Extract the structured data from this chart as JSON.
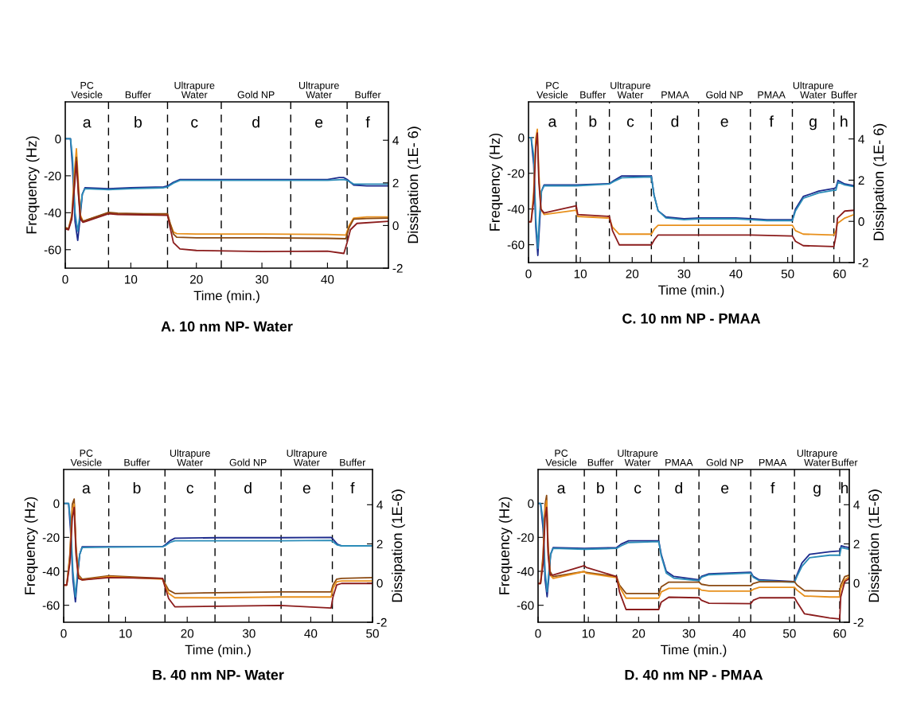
{
  "chart_data": [
    {
      "type": "line",
      "title": "A. 10 nm NP- Water",
      "xlabel": "Time (min.)",
      "ylabel": "Frequency (Hz)",
      "y2label": "Dissipation (1E- 6)",
      "xlim": [
        0,
        49.3
      ],
      "xticks": [
        0,
        10,
        20,
        30,
        40
      ],
      "ylim": [
        -70,
        20
      ],
      "yticks": [
        0,
        -20,
        -40,
        -60
      ],
      "y2lim": [
        -2,
        5.8
      ],
      "y2ticks": [
        -2,
        0,
        2,
        4
      ],
      "series": [
        {
          "color": "#1c2a8c",
          "x": [
            0,
            0.8,
            1.1,
            1.5,
            1.9,
            2.2,
            2.6,
            3,
            6.6,
            10,
            15,
            15.6,
            16.5,
            17.5,
            20,
            25,
            30,
            35,
            40,
            41.8,
            42.5,
            43,
            44,
            46,
            49.3
          ],
          "values": [
            0,
            0,
            -15,
            -45,
            -55,
            -45,
            -30,
            -26.5,
            -27,
            -26.5,
            -26,
            -25.5,
            -23.5,
            -22,
            -22,
            -22,
            -22,
            -22,
            -22,
            -21,
            -21,
            -22,
            -25,
            -25.5,
            -25.5
          ]
        },
        {
          "color": "#2b8cb8",
          "x": [
            0,
            0.8,
            1.1,
            1.5,
            1.9,
            2.2,
            2.6,
            3,
            6.6,
            10,
            15,
            15.6,
            16.5,
            17.5,
            20,
            25,
            30,
            35,
            40,
            42.5,
            43,
            44,
            46,
            49.3
          ],
          "values": [
            0,
            0,
            -10,
            -40,
            -50,
            -42,
            -30,
            -27,
            -27.5,
            -27,
            -26.5,
            -26,
            -24,
            -22.5,
            -22.5,
            -22.5,
            -22.5,
            -22.5,
            -22.5,
            -22,
            -22.5,
            -24.5,
            -24.5,
            -24.5
          ]
        },
        {
          "color": "#e8901c",
          "axis": "y2",
          "x": [
            0,
            0.5,
            1,
            1.4,
            1.7,
            2,
            2.3,
            2.7,
            3.2,
            6.6,
            8,
            12,
            15.6,
            16,
            16.5,
            17,
            20,
            30,
            40,
            42.8,
            43.3,
            44,
            46,
            49.3
          ],
          "values": [
            -0.1,
            -0.15,
            0.5,
            2.5,
            3.6,
            2,
            0.5,
            0.2,
            0.25,
            0.59,
            0.55,
            0.52,
            0.5,
            0.1,
            -0.3,
            -0.38,
            -0.4,
            -0.4,
            -0.42,
            -0.45,
            0,
            0.35,
            0.4,
            0.4
          ]
        },
        {
          "color": "#8b4a12",
          "axis": "y2",
          "x": [
            0,
            0.5,
            1,
            1.4,
            1.7,
            2,
            2.3,
            2.7,
            3.2,
            6.6,
            8,
            12,
            15.6,
            16,
            16.5,
            17,
            20,
            30,
            40,
            42.8,
            43.3,
            44,
            46,
            49.3
          ],
          "values": [
            -0.1,
            -0.15,
            0.4,
            2,
            3.2,
            1.6,
            0.4,
            0.2,
            0.25,
            0.62,
            0.58,
            0.55,
            0.55,
            0.1,
            -0.4,
            -0.55,
            -0.58,
            -0.58,
            -0.6,
            -0.62,
            -0.1,
            0.3,
            0.33,
            0.35
          ]
        },
        {
          "color": "#8b1c1c",
          "axis": "y2",
          "x": [
            0,
            0.5,
            1,
            1.4,
            1.7,
            2,
            2.3,
            2.7,
            3.2,
            6.6,
            8,
            12,
            15.6,
            16,
            16.5,
            17.5,
            20,
            30,
            40,
            42.5,
            43,
            43.5,
            44.5,
            49.3
          ],
          "values": [
            -0.15,
            -0.2,
            0.3,
            1.8,
            3,
            1.5,
            0.3,
            0.15,
            0.2,
            0.55,
            0.52,
            0.5,
            0.48,
            -0.1,
            -0.8,
            -1.1,
            -1.17,
            -1.22,
            -1.2,
            -1.31,
            -0.8,
            -0.2,
            0.1,
            0.2
          ]
        }
      ],
      "ref_lines": [
        {
          "axis": "x",
          "value": 6.6,
          "line_style": "dashed",
          "color": "#000000"
        },
        {
          "axis": "x",
          "value": 15.6,
          "line_style": "dashed",
          "color": "#000000"
        },
        {
          "axis": "x",
          "value": 23.8,
          "line_style": "dashed",
          "color": "#000000"
        },
        {
          "axis": "x",
          "value": 34.4,
          "line_style": "dashed",
          "color": "#000000"
        },
        {
          "axis": "x",
          "value": 43,
          "line_style": "dashed",
          "color": "#000000"
        }
      ],
      "annotations": [
        "a",
        "b",
        "c",
        "d",
        "e",
        "f",
        "PC\nVesicle",
        "Buffer",
        "Ultrapure\nWater",
        "Gold NP",
        "Ultrapure\nWater",
        "Buffer"
      ]
    },
    {
      "type": "line",
      "title": "C. 10 nm NP - PMAA",
      "xlabel": "Time (min.)",
      "ylabel": "Frequency (Hz)",
      "y2label": "Dissipation (1E- 6)",
      "xlim": [
        0,
        62.8
      ],
      "xticks": [
        0,
        10,
        20,
        30,
        40,
        50,
        60
      ],
      "ylim": [
        -70,
        20
      ],
      "yticks": [
        0,
        -20,
        -40,
        -60
      ],
      "y2lim": [
        -2,
        5.8
      ],
      "y2ticks": [
        -2,
        0,
        2,
        4
      ],
      "series": [
        {
          "color": "#1c2a8c",
          "x": [
            0,
            0.5,
            1,
            1.4,
            1.8,
            2.1,
            2.5,
            3,
            9.2,
            15.6,
            16.5,
            18,
            23.7,
            24.2,
            25,
            26.5,
            30,
            33,
            40,
            43,
            46,
            50.9,
            51.5,
            53,
            56,
            58.9,
            59.3,
            59.7,
            61,
            62.8
          ],
          "values": [
            0,
            0,
            -15,
            -50,
            -66,
            -50,
            -30,
            -26.5,
            -26.5,
            -25.8,
            -24,
            -21.5,
            -21.5,
            -32,
            -41,
            -44.5,
            -45.5,
            -45,
            -45,
            -45.5,
            -46,
            -46,
            -40,
            -33,
            -30,
            -28.5,
            -28,
            -24,
            -26,
            -27
          ]
        },
        {
          "color": "#2b8cb8",
          "x": [
            0,
            0.5,
            1,
            1.4,
            1.8,
            2.1,
            2.5,
            3,
            9.2,
            15.6,
            16.5,
            18,
            23.7,
            24.2,
            25,
            26.5,
            30,
            33,
            40,
            43,
            46,
            50.9,
            51.5,
            53,
            56,
            58.9,
            59.3,
            59.7,
            61,
            62.8
          ],
          "values": [
            0,
            0,
            -10,
            -45,
            -62,
            -45,
            -30,
            -27,
            -27,
            -26,
            -24.5,
            -22.5,
            -22,
            -32,
            -41,
            -45,
            -46,
            -45.5,
            -45.5,
            -46,
            -46.5,
            -46.5,
            -41,
            -34,
            -31,
            -29.5,
            -29.5,
            -25,
            -26.5,
            -27.5
          ]
        },
        {
          "color": "#e8901c",
          "axis": "y2",
          "x": [
            0,
            0.5,
            1,
            1.4,
            1.7,
            2,
            2.4,
            3,
            9.2,
            9.5,
            15.6,
            16.2,
            17.5,
            23.7,
            24.3,
            25,
            33,
            43,
            50.9,
            51.5,
            53,
            58.9,
            59.3,
            59.6,
            61,
            62.8
          ],
          "values": [
            -0.02,
            -0.02,
            1.45,
            4.03,
            4.47,
            2.31,
            0.59,
            0.33,
            0.54,
            0.24,
            0.16,
            -0.28,
            -0.62,
            -0.62,
            -0.36,
            -0.19,
            -0.19,
            -0.19,
            -0.19,
            -0.45,
            -0.62,
            -0.66,
            -0.45,
            -0.1,
            0.16,
            0.33
          ]
        },
        {
          "color": "#8b1c1c",
          "axis": "y2",
          "x": [
            0,
            0.5,
            1,
            1.4,
            1.7,
            2,
            2.4,
            3,
            9.2,
            9.5,
            15.6,
            16.2,
            17.5,
            23.7,
            24.3,
            25,
            33,
            43,
            50.9,
            51.5,
            53,
            58.9,
            59.3,
            59.6,
            61,
            62.8
          ],
          "values": [
            -0.02,
            -0.02,
            1.02,
            3.6,
            4.29,
            1.88,
            0.59,
            0.41,
            0.76,
            0.33,
            0.24,
            -0.45,
            -1.14,
            -1.14,
            -0.88,
            -0.66,
            -0.66,
            -0.66,
            -0.71,
            -0.97,
            -1.18,
            -1.22,
            -0.71,
            0.16,
            0.5,
            0.54
          ]
        }
      ],
      "ref_lines": [
        {
          "axis": "x",
          "value": 9.2,
          "line_style": "dashed",
          "color": "#000000"
        },
        {
          "axis": "x",
          "value": 15.6,
          "line_style": "dashed",
          "color": "#000000"
        },
        {
          "axis": "x",
          "value": 23.7,
          "line_style": "dashed",
          "color": "#000000"
        },
        {
          "axis": "x",
          "value": 32.8,
          "line_style": "dashed",
          "color": "#000000"
        },
        {
          "axis": "x",
          "value": 42.8,
          "line_style": "dashed",
          "color": "#000000"
        },
        {
          "axis": "x",
          "value": 50.9,
          "line_style": "dashed",
          "color": "#000000"
        },
        {
          "axis": "x",
          "value": 58.9,
          "line_style": "dashed",
          "color": "#000000"
        }
      ],
      "annotations": [
        "a",
        "b",
        "c",
        "d",
        "e",
        "f",
        "g",
        "h",
        "PC\nVesicle",
        "Buffer",
        "Ultrapure\nWater",
        "PMAA",
        "Gold NP",
        "PMAA",
        "Ultrapure\nWater",
        "Buffer"
      ]
    },
    {
      "type": "line",
      "title": "B. 40 nm NP- Water",
      "xlabel": "Time (min.)",
      "ylabel": "Frequency (Hz)",
      "y2label": "Dissipation (1E-6)",
      "xlim": [
        0,
        50
      ],
      "xticks": [
        0,
        10,
        20,
        30,
        40,
        50
      ],
      "ylim": [
        -70,
        20
      ],
      "yticks": [
        0,
        -20,
        -40,
        -60
      ],
      "y2lim": [
        -2,
        5.8
      ],
      "y2ticks": [
        -2,
        0,
        2,
        4
      ],
      "series": [
        {
          "color": "#1c2a8c",
          "x": [
            0,
            0.8,
            1.1,
            1.5,
            1.9,
            2.2,
            2.6,
            3,
            7.3,
            16,
            16.4,
            17.2,
            18,
            25,
            35,
            43.3,
            43.6,
            44.3,
            45,
            50
          ],
          "values": [
            0,
            0,
            -15,
            -45,
            -58,
            -45,
            -30,
            -25.5,
            -25.5,
            -25.5,
            -24.5,
            -22,
            -20.5,
            -20.2,
            -20.2,
            -20,
            -21,
            -24,
            -25,
            -25
          ]
        },
        {
          "color": "#2b8cb8",
          "x": [
            0,
            0.8,
            1.1,
            1.5,
            1.9,
            2.2,
            2.6,
            3,
            7.3,
            16,
            16.4,
            17.2,
            18,
            25,
            35,
            43.3,
            43.6,
            44.3,
            45,
            50
          ],
          "values": [
            0,
            0,
            -10,
            -40,
            -55,
            -42,
            -30,
            -26,
            -25.8,
            -25.5,
            -25,
            -23,
            -22,
            -22,
            -22,
            -21.8,
            -22.5,
            -24.5,
            -25,
            -25
          ]
        },
        {
          "color": "#8b4a12",
          "axis": "y2",
          "x": [
            0,
            0.5,
            1,
            1.4,
            1.7,
            2,
            2.4,
            3,
            7.3,
            16,
            16.4,
            17,
            18,
            25,
            35,
            43.3,
            43.6,
            44.2,
            45,
            50
          ],
          "values": [
            -0.1,
            -0.1,
            1.45,
            4.03,
            4.29,
            1.88,
            0.41,
            0.2,
            0.37,
            0.24,
            -0.02,
            -0.36,
            -0.53,
            -0.49,
            -0.45,
            -0.45,
            -0.1,
            0.2,
            0.24,
            0.28
          ]
        },
        {
          "color": "#e8901c",
          "axis": "y2",
          "x": [
            0,
            0.5,
            1,
            1.4,
            1.7,
            2,
            2.4,
            3,
            7.3,
            16,
            16.4,
            17,
            18,
            25,
            35,
            43.3,
            43.6,
            44.2,
            45,
            50
          ],
          "values": [
            -0.1,
            -0.1,
            1.28,
            3.78,
            4.03,
            1.62,
            0.33,
            0.16,
            0.33,
            0.2,
            -0.1,
            -0.53,
            -0.75,
            -0.75,
            -0.71,
            -0.71,
            -0.28,
            0.07,
            0.11,
            0.11
          ]
        },
        {
          "color": "#8b1c1c",
          "axis": "y2",
          "x": [
            0,
            0.5,
            1,
            1.4,
            1.7,
            2,
            2.4,
            3,
            7.3,
            16,
            16.4,
            17,
            18,
            25,
            35,
            43.3,
            43.6,
            44.2,
            45,
            50
          ],
          "values": [
            -0.1,
            -0.1,
            1.02,
            3.34,
            3.86,
            1.45,
            0.24,
            0.16,
            0.28,
            0.24,
            -0.19,
            -0.79,
            -1.21,
            -1.18,
            -1.14,
            -1.27,
            -0.71,
            -0.1,
            -0.02,
            -0.02
          ]
        }
      ],
      "ref_lines": [
        {
          "axis": "x",
          "value": 7.3,
          "line_style": "dashed",
          "color": "#000000"
        },
        {
          "axis": "x",
          "value": 16.4,
          "line_style": "dashed",
          "color": "#000000"
        },
        {
          "axis": "x",
          "value": 24.5,
          "line_style": "dashed",
          "color": "#000000"
        },
        {
          "axis": "x",
          "value": 35.2,
          "line_style": "dashed",
          "color": "#000000"
        },
        {
          "axis": "x",
          "value": 43.5,
          "line_style": "dashed",
          "color": "#000000"
        }
      ],
      "annotations": [
        "a",
        "b",
        "c",
        "d",
        "e",
        "f",
        "PC\nVesicle",
        "Buffer",
        "Ultrapure\nWater",
        "Gold NP",
        "Ultrapure\nWater",
        "Buffer"
      ]
    },
    {
      "type": "line",
      "title": "D. 40 nm NP - PMAA",
      "xlabel": "Time (min.)",
      "ylabel": "Frequency (Hz)",
      "y2label": "Dissipation (1E-6)",
      "xlim": [
        0,
        61.9
      ],
      "xticks": [
        0,
        10,
        20,
        30,
        40,
        50,
        60
      ],
      "ylim": [
        -70,
        20
      ],
      "yticks": [
        0,
        -20,
        -40,
        -60
      ],
      "y2lim": [
        -2,
        5.8
      ],
      "y2ticks": [
        -2,
        0,
        2,
        4
      ],
      "series": [
        {
          "color": "#1c2a8c",
          "x": [
            0,
            0.5,
            1,
            1.4,
            1.8,
            2.1,
            2.5,
            3,
            9.2,
            15.6,
            16.5,
            18,
            24,
            24.5,
            25.5,
            27,
            32,
            32.5,
            34,
            42.3,
            42.8,
            44,
            51,
            51.5,
            52.5,
            54,
            58,
            60,
            60.3,
            61,
            61.9
          ],
          "values": [
            0,
            0,
            -15,
            -45,
            -55,
            -45,
            -30,
            -26,
            -26.5,
            -26,
            -24,
            -22,
            -22,
            -30,
            -40,
            -43,
            -45,
            -43,
            -41.5,
            -40.5,
            -43,
            -45,
            -46,
            -42,
            -35,
            -30,
            -28.5,
            -28,
            -25,
            -25.5,
            -26
          ]
        },
        {
          "color": "#2b8cb8",
          "x": [
            0,
            0.5,
            1,
            1.4,
            1.8,
            2.1,
            2.5,
            3,
            9.2,
            15.6,
            16.5,
            18,
            24,
            24.5,
            25.5,
            27,
            32,
            32.5,
            34,
            42.3,
            42.8,
            44,
            51,
            51.5,
            52.5,
            54,
            58,
            60,
            60.3,
            61,
            61.9
          ],
          "values": [
            0,
            0,
            -10,
            -40,
            -52,
            -42,
            -30,
            -26.5,
            -27,
            -26.5,
            -25,
            -23,
            -22.5,
            -31,
            -41,
            -44,
            -45.5,
            -43.5,
            -42,
            -41,
            -43.5,
            -45.5,
            -46.5,
            -43,
            -37,
            -32,
            -30.5,
            -30.5,
            -26,
            -26.5,
            -27
          ]
        },
        {
          "color": "#8b4a12",
          "axis": "y2",
          "x": [
            0,
            0.5,
            1,
            1.4,
            1.7,
            2,
            2.4,
            3,
            9.2,
            9.6,
            15.6,
            16.2,
            17.5,
            24,
            24.5,
            26,
            32,
            32.5,
            34,
            42.3,
            42.8,
            44,
            51,
            51.5,
            53,
            58,
            60,
            60.2,
            61,
            61.9
          ],
          "values": [
            -0.02,
            -0.02,
            1.45,
            4.03,
            4.47,
            1.88,
            0.59,
            0.33,
            0.59,
            0.54,
            0.33,
            -0.1,
            -0.53,
            -0.53,
            -0.19,
            0.05,
            0.05,
            -0.06,
            -0.13,
            -0.13,
            -0.02,
            0.07,
            0.07,
            -0.1,
            -0.39,
            -0.41,
            -0.41,
            -0.1,
            0.33,
            0.41
          ]
        },
        {
          "color": "#e8901c",
          "axis": "y2",
          "x": [
            0,
            0.5,
            1,
            1.4,
            1.7,
            2,
            2.4,
            3,
            9.2,
            9.6,
            15.6,
            16.2,
            17.5,
            24,
            24.5,
            26,
            32,
            32.5,
            34,
            42.3,
            42.8,
            44,
            51,
            51.5,
            53,
            58,
            60,
            60.2,
            61,
            61.9
          ],
          "values": [
            -0.02,
            -0.02,
            1.28,
            3.78,
            4.21,
            1.62,
            0.41,
            0.24,
            0.59,
            0.5,
            0.28,
            -0.19,
            -0.77,
            -0.77,
            -0.45,
            -0.27,
            -0.27,
            -0.36,
            -0.41,
            -0.41,
            -0.32,
            -0.22,
            -0.22,
            -0.36,
            -0.66,
            -0.71,
            -0.71,
            -0.28,
            0.16,
            0.33
          ]
        },
        {
          "color": "#8b1c1c",
          "axis": "y2",
          "x": [
            0,
            0.5,
            1,
            1.4,
            1.7,
            2,
            2.4,
            3,
            9.2,
            9.6,
            15.6,
            16.2,
            17.5,
            24,
            24.5,
            26,
            32,
            32.5,
            34,
            42.3,
            42.8,
            44,
            51,
            51.5,
            53,
            58,
            60,
            60.2,
            61,
            61.9
          ],
          "values": [
            -0.02,
            -0.02,
            1.02,
            3.34,
            3.86,
            1.45,
            0.41,
            0.41,
            0.89,
            0.8,
            0.33,
            -0.45,
            -1.35,
            -1.35,
            -0.97,
            -0.72,
            -0.75,
            -0.88,
            -1.03,
            -1.05,
            -0.88,
            -0.75,
            -0.75,
            -0.97,
            -1.57,
            -1.78,
            -1.83,
            -0.71,
            0.07,
            0.24
          ]
        }
      ],
      "ref_lines": [
        {
          "axis": "x",
          "value": 9.2,
          "line_style": "dashed",
          "color": "#000000"
        },
        {
          "axis": "x",
          "value": 15.6,
          "line_style": "dashed",
          "color": "#000000"
        },
        {
          "axis": "x",
          "value": 24,
          "line_style": "dashed",
          "color": "#000000"
        },
        {
          "axis": "x",
          "value": 32,
          "line_style": "dashed",
          "color": "#000000"
        },
        {
          "axis": "x",
          "value": 42.3,
          "line_style": "dashed",
          "color": "#000000"
        },
        {
          "axis": "x",
          "value": 51,
          "line_style": "dashed",
          "color": "#000000"
        },
        {
          "axis": "x",
          "value": 60,
          "line_style": "dashed",
          "color": "#000000"
        }
      ],
      "annotations": [
        "a",
        "b",
        "c",
        "d",
        "e",
        "f",
        "g",
        "h",
        "PC\nVesicle",
        "Buffer",
        "Ultrapure\nWater",
        "PMAA",
        "Gold NP",
        "PMAA",
        "Ultrapure\nWater",
        "Buffer"
      ]
    }
  ]
}
